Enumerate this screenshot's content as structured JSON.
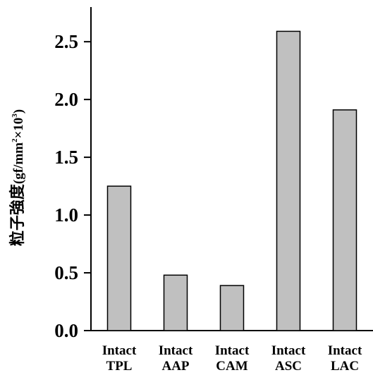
{
  "chart_data": {
    "type": "bar",
    "categories": [
      [
        "Intact",
        "TPL"
      ],
      [
        "Intact",
        "AAP"
      ],
      [
        "Intact",
        "CAM"
      ],
      [
        "Intact",
        "ASC"
      ],
      [
        "Intact",
        "LAC"
      ]
    ],
    "values": [
      1.25,
      0.48,
      0.39,
      2.59,
      1.91
    ],
    "ylim": [
      0,
      2.8
    ],
    "yticks": [
      "0.0",
      "0.5",
      "1.0",
      "1.5",
      "2.0",
      "2.5"
    ],
    "title": "",
    "xlabel": "",
    "ylabel": {
      "main": "粒子強度",
      "unit_prefix": "(gf/mm",
      "unit_sup1": "2",
      "unit_mid": "×10",
      "unit_sup2": "3",
      "unit_suffix": ")"
    },
    "bar_color": "#c0c0c0",
    "bar_stroke": "#000000",
    "grid": false,
    "legend": "none"
  }
}
